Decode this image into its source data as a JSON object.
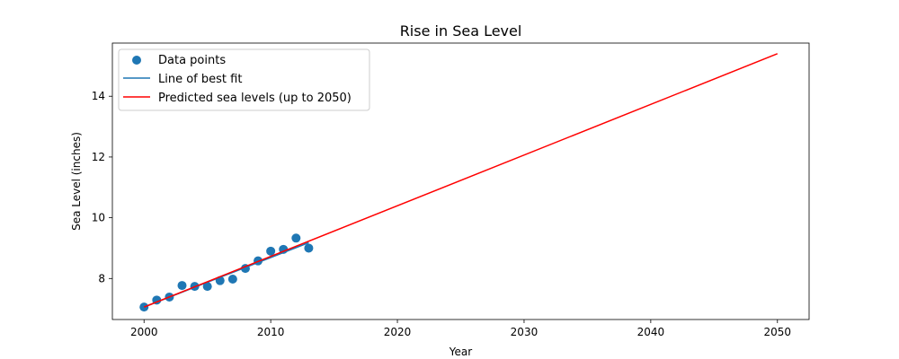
{
  "chart_data": {
    "type": "scatter",
    "title": "Rise in Sea Level",
    "xlabel": "Year",
    "ylabel": "Sea Level (inches)",
    "xlim": [
      1997.5,
      2052.5
    ],
    "ylim": [
      6.65,
      15.75
    ],
    "xticks": [
      2000,
      2010,
      2020,
      2030,
      2040,
      2050
    ],
    "yticks": [
      8,
      10,
      12,
      14
    ],
    "grid": false,
    "legend_placement": "upper-left",
    "series": [
      {
        "name": "Data points",
        "kind": "scatter",
        "color": "#1f77b4",
        "x": [
          2000,
          2001,
          2002,
          2003,
          2004,
          2005,
          2006,
          2007,
          2008,
          2009,
          2010,
          2011,
          2012,
          2013
        ],
        "y": [
          7.06,
          7.29,
          7.39,
          7.77,
          7.74,
          7.74,
          7.93,
          7.98,
          8.33,
          8.58,
          8.9,
          8.96,
          9.33,
          9.0
        ]
      },
      {
        "name": "Line of best fit",
        "kind": "line",
        "color": "#1f77b4",
        "x": [
          2000,
          2013
        ],
        "y": [
          7.06,
          9.18
        ]
      },
      {
        "name": "Predicted sea levels (up to 2050)",
        "kind": "line",
        "color": "#ff0000",
        "x": [
          2000,
          2050
        ],
        "y": [
          7.06,
          15.4
        ]
      }
    ]
  }
}
